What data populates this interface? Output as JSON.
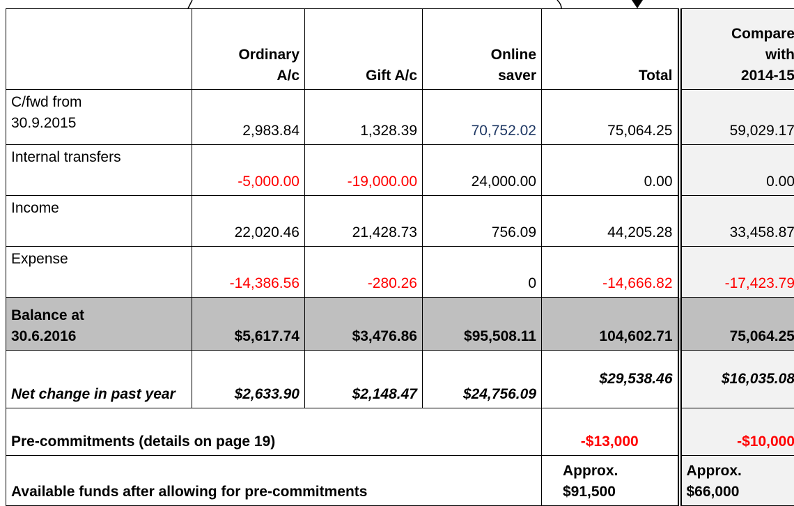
{
  "table": {
    "header": [
      "Ordinary A/c",
      "Gift A/c",
      "Online saver",
      "Total",
      "Compare with 2014-15"
    ],
    "rows": [
      {
        "label": "C/fwd from 30.9.2015",
        "values": [
          "2,983.84",
          "1,328.39",
          "70,752.02",
          "75,064.25",
          "59,029.17"
        ]
      },
      {
        "label": "Internal transfers",
        "values": [
          "-5,000.00",
          "-19,000.00",
          "24,000.00",
          "0.00",
          "0.00"
        ]
      },
      {
        "label": "Income",
        "values": [
          "22,020.46",
          "21,428.73",
          "756.09",
          "44,205.28",
          "33,458.87"
        ]
      },
      {
        "label": "Expense",
        "values": [
          "-14,386.56",
          "-280.26",
          "0",
          "-14,666.82",
          "-17,423.79"
        ]
      },
      {
        "label": "Balance at 30.6.2016",
        "values": [
          "$5,617.74",
          "$3,476.86",
          "$95,508.11",
          "104,602.71",
          "75,064.25"
        ]
      },
      {
        "label": "Net change in past year",
        "values": [
          "$2,633.90",
          "$2,148.47",
          "$24,756.09",
          "$29,538.46",
          "$16,035.08"
        ]
      }
    ],
    "precommitments": {
      "label": "Pre-commitments (details on page 19)",
      "total": "-$13,000",
      "compare": "-$10,000"
    },
    "available": {
      "label": "Available funds after allowing for pre-commitments",
      "total": [
        "Approx.",
        "$91,500"
      ],
      "compare": [
        "Approx.",
        "$66,000"
      ]
    }
  }
}
